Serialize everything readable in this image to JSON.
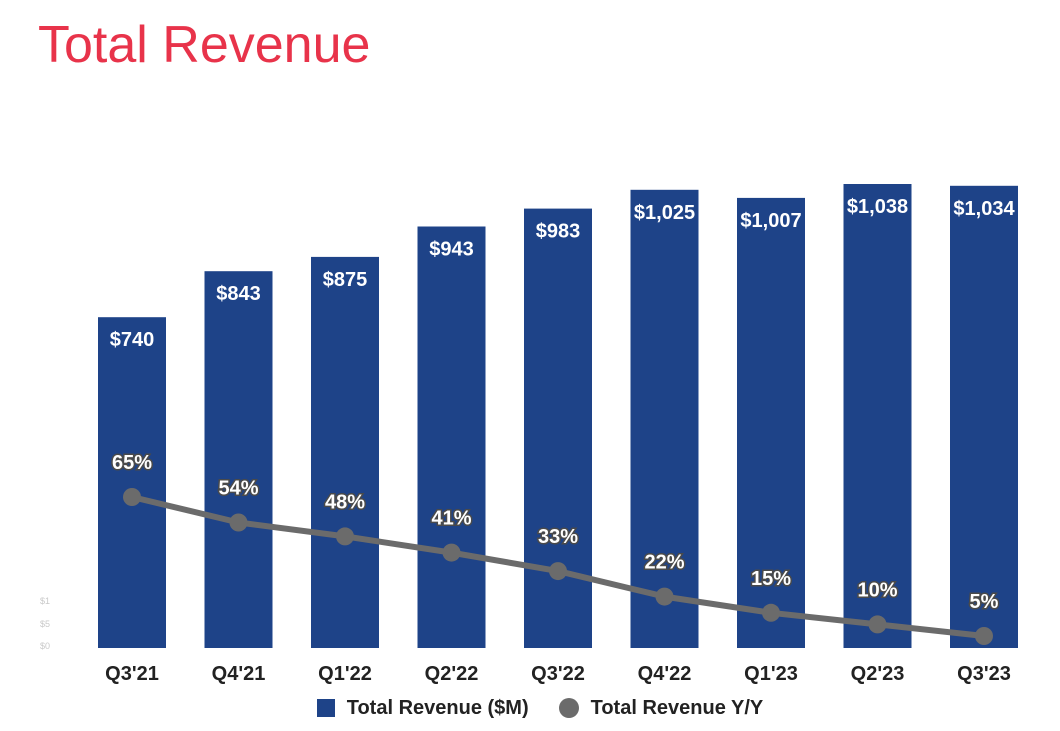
{
  "colors": {
    "title": "#e8334a",
    "bar": "#1e4388",
    "line": "#6b6b6b",
    "label_text": "#ffffff",
    "axis_text": "#222222"
  },
  "chart_data": {
    "type": "bar",
    "title": "Total Revenue",
    "categories": [
      "Q3'21",
      "Q4'21",
      "Q1'22",
      "Q2'22",
      "Q3'22",
      "Q4'22",
      "Q1'23",
      "Q2'23",
      "Q3'23"
    ],
    "series": [
      {
        "name": "Total Revenue ($M)",
        "type": "bar",
        "axis": "left",
        "values": [
          740,
          843,
          875,
          943,
          983,
          1025,
          1007,
          1038,
          1034
        ],
        "data_labels": [
          "$740",
          "$843",
          "$875",
          "$943",
          "$983",
          "$1,025",
          "$1,007",
          "$1,038",
          "$1,034"
        ]
      },
      {
        "name": "Total Revenue Y/Y",
        "type": "line",
        "axis": "right",
        "values": [
          65,
          54,
          48,
          41,
          33,
          22,
          15,
          10,
          5
        ],
        "data_labels": [
          "65%",
          "54%",
          "48%",
          "41%",
          "33%",
          "22%",
          "15%",
          "10%",
          "5%"
        ]
      }
    ],
    "ylim_left": [
      0,
      1060
    ],
    "ylim_right": [
      0,
      200
    ],
    "left_axis_tick_labels": [
      "$1",
      "$5",
      "$0"
    ],
    "grid": false,
    "legend_position": "bottom"
  }
}
